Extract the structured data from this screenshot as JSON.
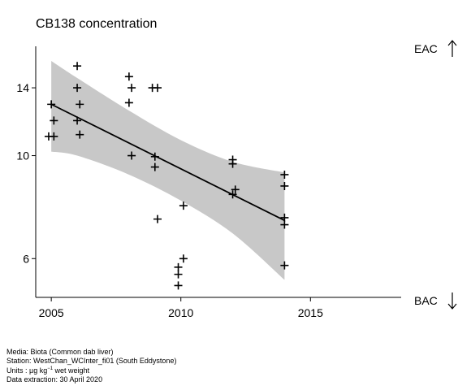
{
  "chart_data": {
    "type": "scatter",
    "title": "CB138 concentration",
    "xlabel": "",
    "ylabel": "",
    "xlim": [
      2004.4,
      2018.5
    ],
    "ylim_log": [
      4.95,
      17.2
    ],
    "log_y": true,
    "xticks": [
      2005,
      2010,
      2015
    ],
    "yticks": [
      6,
      10,
      14
    ],
    "grid": false,
    "points": [
      {
        "x": 2005.0,
        "y": 12.9
      },
      {
        "x": 2005.1,
        "y": 11.9
      },
      {
        "x": 2004.9,
        "y": 11.0
      },
      {
        "x": 2005.1,
        "y": 11.0
      },
      {
        "x": 2006.0,
        "y": 15.6
      },
      {
        "x": 2006.0,
        "y": 14.0
      },
      {
        "x": 2006.1,
        "y": 12.9
      },
      {
        "x": 2006.0,
        "y": 11.9
      },
      {
        "x": 2006.1,
        "y": 11.1
      },
      {
        "x": 2008.0,
        "y": 14.8
      },
      {
        "x": 2008.1,
        "y": 14.0
      },
      {
        "x": 2008.0,
        "y": 13.0
      },
      {
        "x": 2008.1,
        "y": 10.0
      },
      {
        "x": 2008.9,
        "y": 14.0
      },
      {
        "x": 2009.1,
        "y": 14.0
      },
      {
        "x": 2009.0,
        "y": 9.95
      },
      {
        "x": 2009.0,
        "y": 9.45
      },
      {
        "x": 2009.1,
        "y": 7.3
      },
      {
        "x": 2010.1,
        "y": 7.8
      },
      {
        "x": 2010.1,
        "y": 6.0
      },
      {
        "x": 2009.9,
        "y": 5.75
      },
      {
        "x": 2009.9,
        "y": 5.55
      },
      {
        "x": 2009.9,
        "y": 5.25
      },
      {
        "x": 2012.0,
        "y": 9.8
      },
      {
        "x": 2012.0,
        "y": 9.6
      },
      {
        "x": 2012.1,
        "y": 8.45
      },
      {
        "x": 2012.0,
        "y": 8.25
      },
      {
        "x": 2014.0,
        "y": 9.1
      },
      {
        "x": 2014.0,
        "y": 8.6
      },
      {
        "x": 2014.0,
        "y": 7.35
      },
      {
        "x": 2014.0,
        "y": 7.1
      },
      {
        "x": 2014.0,
        "y": 5.8
      }
    ],
    "trend": {
      "x": [
        2005,
        2014
      ],
      "y": [
        12.9,
        7.25
      ]
    },
    "band": {
      "x": [
        2005,
        2006,
        2008,
        2010,
        2012,
        2014
      ],
      "upper": [
        16.0,
        14.7,
        12.5,
        10.8,
        9.7,
        9.2
      ],
      "lower": [
        10.2,
        10.0,
        9.1,
        8.0,
        6.8,
        5.4
      ]
    },
    "thresholds": [
      {
        "label": "EAC",
        "direction": "up"
      },
      {
        "label": "BAC",
        "direction": "down"
      }
    ],
    "colors": {
      "band": "#c8c8c8",
      "points": "#000000",
      "trend": "#000000"
    }
  },
  "footer": {
    "media": "Media: Biota (Common dab liver)",
    "station": "Station: WestChan_WCInter_fi01 (South Eddystone)",
    "units_prefix": "Units : µg kg",
    "units_exp": "−1",
    "units_suffix": " wet weight",
    "extraction": "Data extraction: 30 April 2020"
  }
}
